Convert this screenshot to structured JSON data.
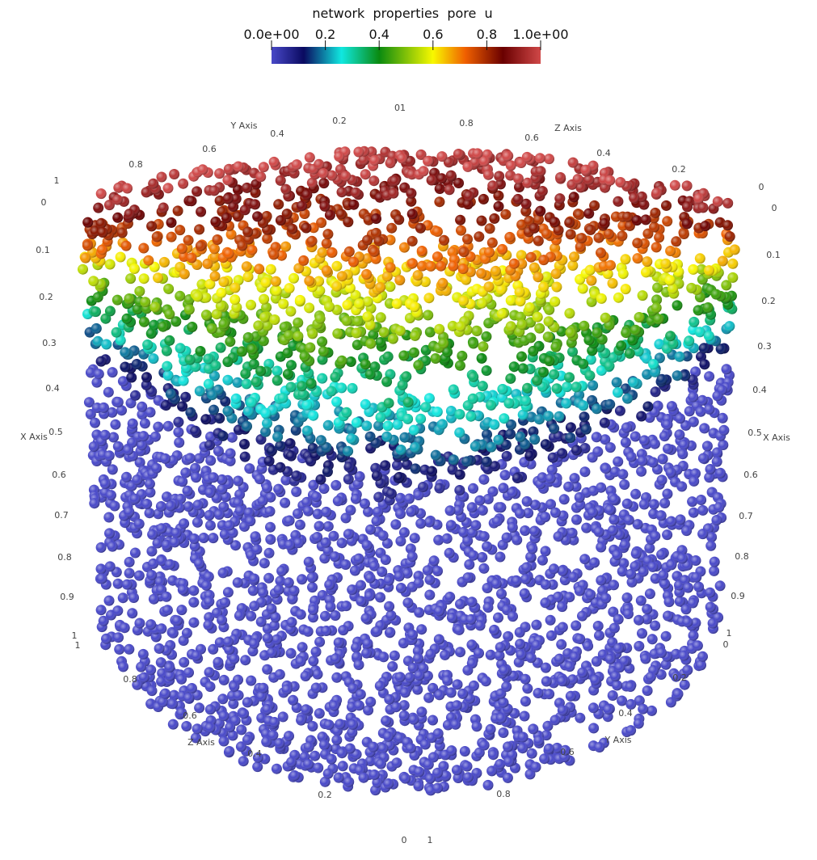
{
  "colorbar": {
    "title": "network  properties  pore  u",
    "ticks": [
      "0.0e+00",
      "0.2",
      "0.4",
      "0.6",
      "0.8",
      "1.0e+00"
    ]
  },
  "axis_labels": [
    "01",
    "0.8",
    "0.6",
    "Z Axis",
    "0.4",
    "0.2",
    "0",
    "0",
    "Y Axis",
    "0.4",
    "0.2",
    "0.6",
    "0.8",
    "1",
    "0",
    "0.1",
    "0.2",
    "0.3",
    "0.4",
    "X Axis",
    "0.5",
    "0.6",
    "0.7",
    "0.8",
    "0.9",
    "1",
    "1",
    "0.1",
    "0.2",
    "0.3",
    "0.4",
    "0.5",
    "X Axis",
    "0.6",
    "0.7",
    "0.8",
    "0.9",
    "1",
    "0",
    "0.8",
    "0.6",
    "Z Axis",
    "0.4",
    "0.2",
    "0",
    "0.2",
    "0.4",
    "Y Axis",
    "0.6",
    "0.8",
    "1"
  ]
}
